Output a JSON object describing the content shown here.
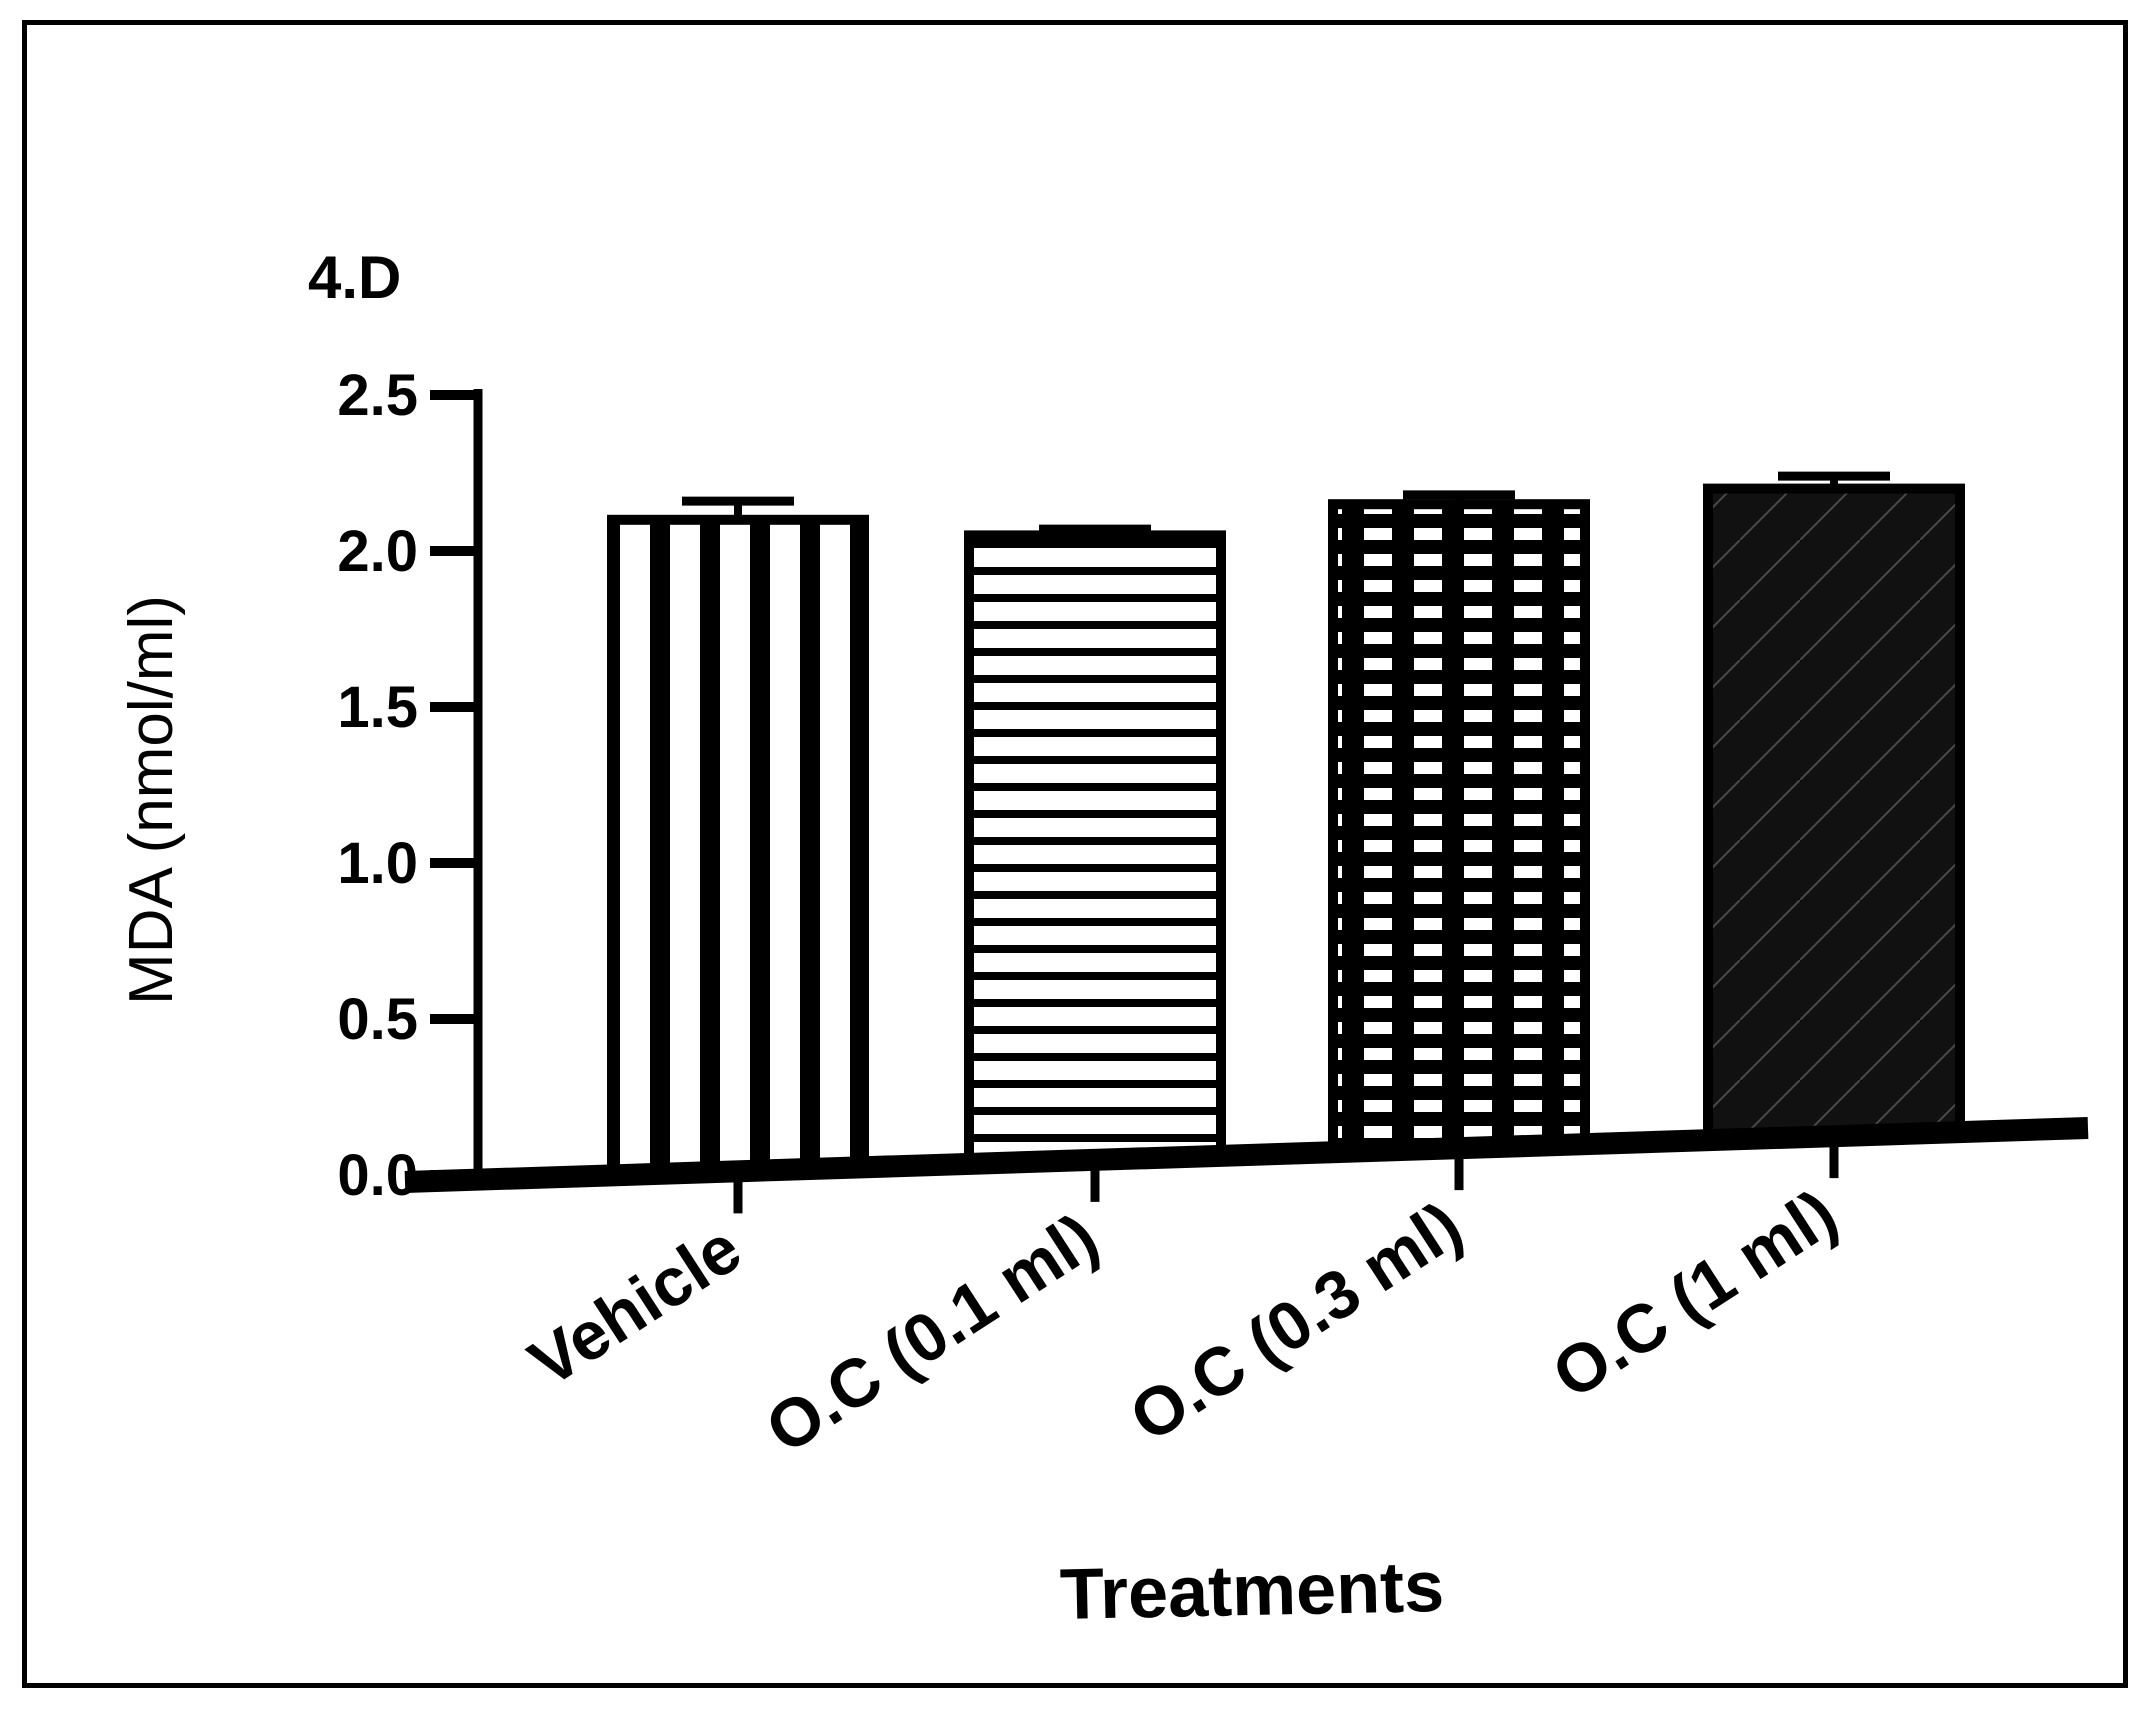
{
  "panel_label": "4.D",
  "chart_data": {
    "type": "bar",
    "title": "",
    "xlabel": "Treatments",
    "ylabel": "MDA (nmol/ml)",
    "categories": [
      "Vehicle",
      "O.C (0.1 ml)",
      "O.C (0.3 ml)",
      "O.C (1 ml)"
    ],
    "values": [
      2.1,
      2.05,
      2.15,
      2.2
    ],
    "error": [
      0.06,
      0.02,
      0.03,
      0.04
    ],
    "patterns": [
      "vertical-stripes",
      "horizontal-stripes",
      "grid",
      "diagonal-solid"
    ],
    "yticks": [
      "0.0",
      "0.5",
      "1.0",
      "1.5",
      "2.0",
      "2.5"
    ],
    "ylim": [
      0,
      2.5
    ],
    "grid": false,
    "legend": "none"
  }
}
